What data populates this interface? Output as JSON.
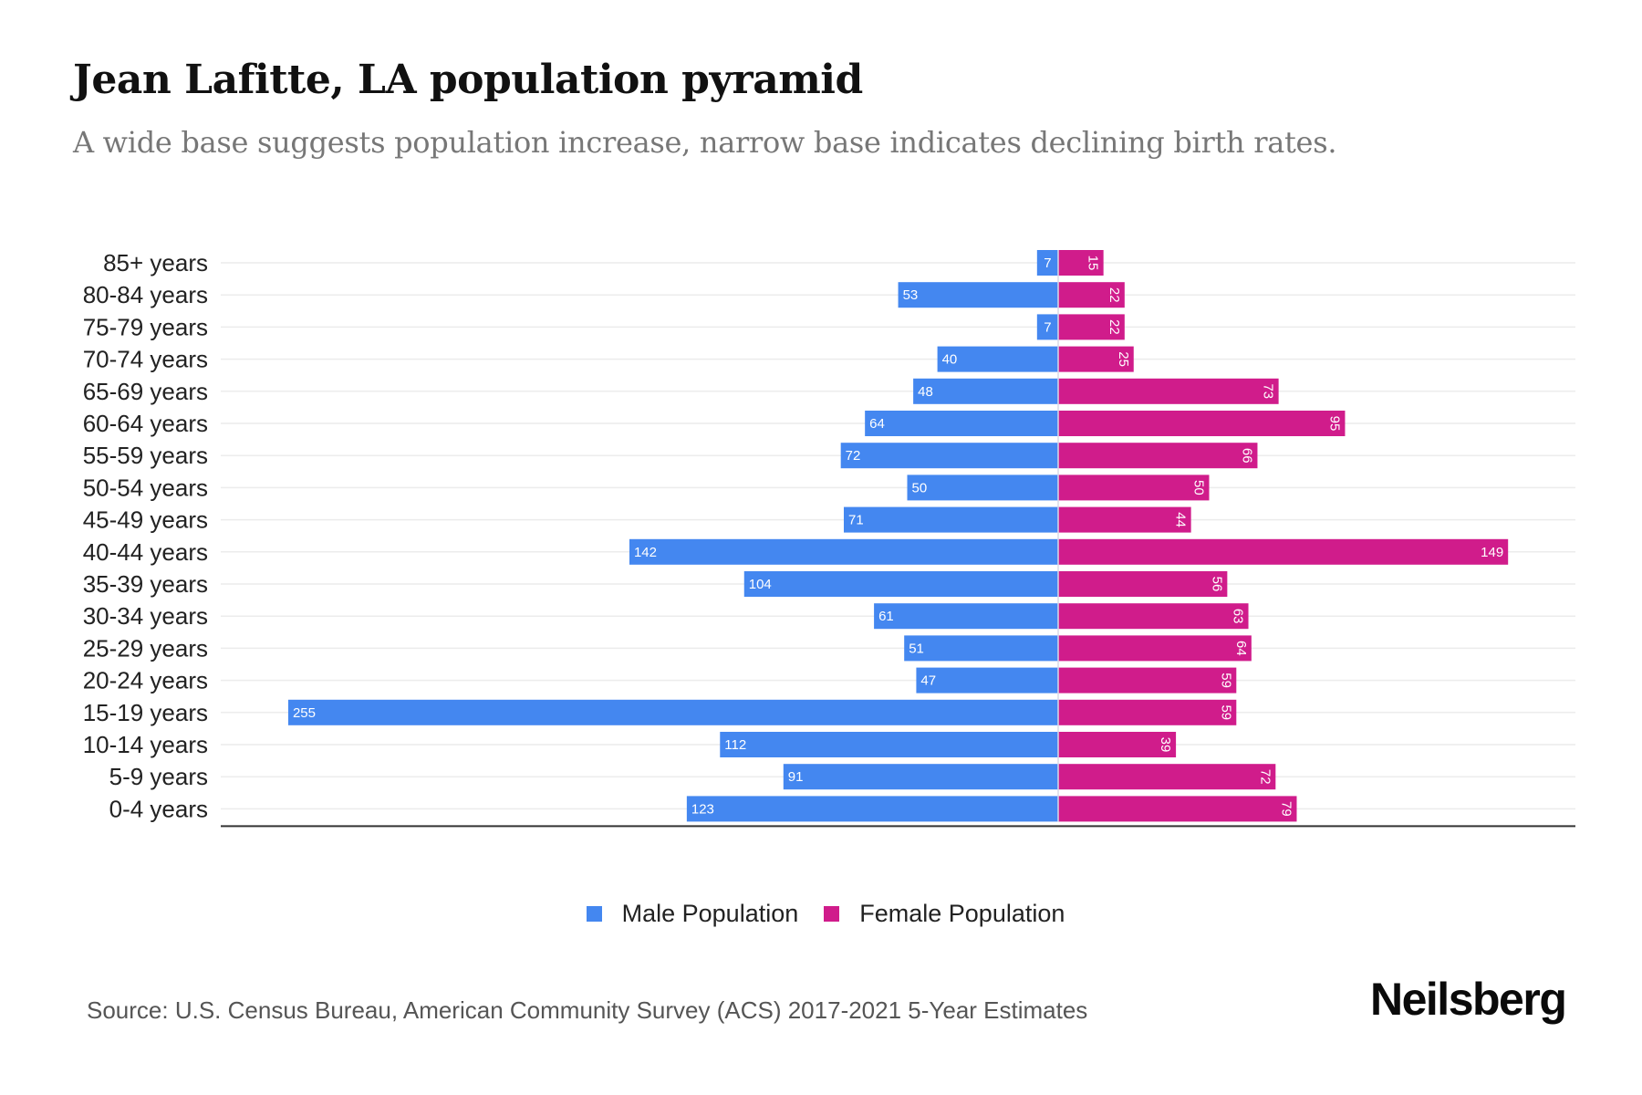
{
  "header": {
    "title": "Jean Lafitte, LA population pyramid",
    "subtitle": "A wide base suggests population increase, narrow base indicates declining birth rates."
  },
  "legend": {
    "male_label": "Male Population",
    "female_label": "Female Population"
  },
  "footer": {
    "source": "Source: U.S. Census Bureau, American Community Survey (ACS) 2017-2021 5-Year Estimates",
    "logo": "Neilsberg"
  },
  "colors": {
    "male": "#4487F0",
    "female": "#D01C8B",
    "grid": "#ececec",
    "axis": "#333333"
  },
  "chart_data": {
    "type": "bar",
    "orientation": "horizontal-pyramid",
    "title": "Jean Lafitte, LA population pyramid",
    "subtitle": "A wide base suggests population increase, narrow base indicates declining birth rates.",
    "xlabel": "",
    "ylabel": "",
    "grid": true,
    "legend_position": "bottom-center",
    "categories": [
      "85+ years",
      "80-84 years",
      "75-79 years",
      "70-74 years",
      "65-69 years",
      "60-64 years",
      "55-59 years",
      "50-54 years",
      "45-49 years",
      "40-44 years",
      "35-39 years",
      "30-34 years",
      "25-29 years",
      "20-24 years",
      "15-19 years",
      "10-14 years",
      "5-9 years",
      "0-4 years"
    ],
    "series": [
      {
        "name": "Male Population",
        "side": "left",
        "values": [
          7,
          53,
          7,
          40,
          48,
          64,
          72,
          50,
          71,
          142,
          104,
          61,
          51,
          47,
          255,
          112,
          91,
          123
        ]
      },
      {
        "name": "Female Population",
        "side": "right",
        "values": [
          15,
          22,
          22,
          25,
          73,
          95,
          66,
          50,
          44,
          149,
          56,
          63,
          64,
          59,
          59,
          39,
          72,
          79
        ]
      }
    ],
    "xlim": [
      -255,
      149
    ]
  }
}
